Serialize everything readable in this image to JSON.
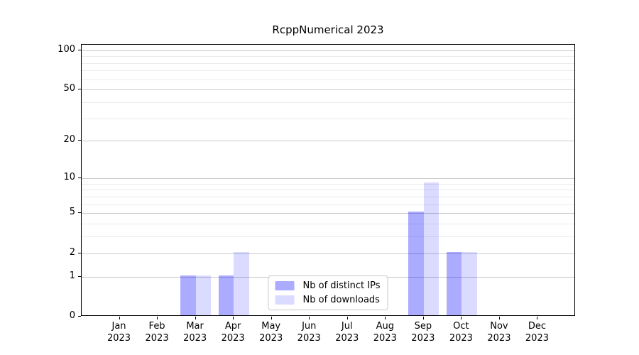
{
  "title": "RcppNumerical 2023",
  "chart_data": {
    "type": "bar",
    "title": "RcppNumerical 2023",
    "categories": [
      "Jan 2023",
      "Feb 2023",
      "Mar 2023",
      "Apr 2023",
      "May 2023",
      "Jun 2023",
      "Jul 2023",
      "Aug 2023",
      "Sep 2023",
      "Oct 2023",
      "Nov 2023",
      "Dec 2023"
    ],
    "series": [
      {
        "key": "distinct-ips",
        "name": "Nb of distinct IPs",
        "color": "rgba(0,0,255,0.33)",
        "values": [
          0,
          0,
          1,
          1,
          0,
          0,
          0,
          0,
          5,
          2,
          0,
          0
        ]
      },
      {
        "key": "downloads",
        "name": "Nb of downloads",
        "color": "rgba(0,0,255,0.14)",
        "values": [
          0,
          0,
          1,
          2,
          0,
          0,
          0,
          0,
          9,
          2,
          0,
          0
        ]
      }
    ],
    "yscale": "log1p",
    "ylim": [
      0,
      110
    ],
    "yticks_major": [
      0,
      1,
      2,
      5,
      10,
      20,
      50,
      100
    ],
    "yticks_minor": [
      3,
      4,
      6,
      7,
      8,
      9,
      30,
      40,
      60,
      70,
      80,
      90
    ],
    "grid": true,
    "grid_major_color": "#c9c9c9",
    "grid_minor_color": "#ebebeb",
    "legend_position": "lower center",
    "xlabel": "",
    "ylabel": ""
  }
}
